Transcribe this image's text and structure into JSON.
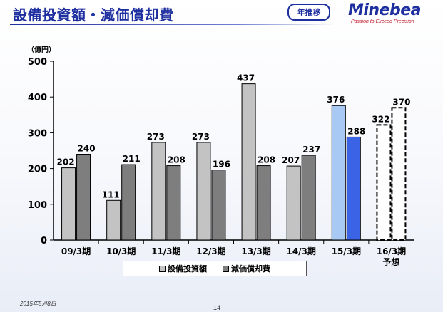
{
  "header": {
    "title": "設備投資額・減価償却費",
    "badge": "年推移"
  },
  "logo": {
    "name": "Minebea",
    "tagline": "Passion to Exceed Precision"
  },
  "footer": {
    "date": "2015年5月8日",
    "page": "14"
  },
  "colors": {
    "title": "#1e2fa0",
    "capex": "#c3c3c3",
    "depreciation": "#7e7e7e",
    "capex_highlight": "#a9c9f5",
    "depreciation_highlight": "#3b63e6"
  },
  "chart_data": {
    "type": "bar",
    "ylabel": "（億円）",
    "ylim": [
      0,
      500
    ],
    "yticks": [
      0,
      100,
      200,
      300,
      400,
      500
    ],
    "grid": false,
    "legend_position": "bottom",
    "categories": [
      "09/3期",
      "10/3期",
      "11/3期",
      "12/3期",
      "13/3期",
      "14/3期",
      "15/3期",
      "16/3期"
    ],
    "category_notes": [
      "",
      "",
      "",
      "",
      "",
      "",
      "",
      "予想"
    ],
    "series": [
      {
        "name": "設備投資額",
        "values": [
          202,
          111,
          273,
          273,
          437,
          207,
          376,
          322
        ]
      },
      {
        "name": "減価償却費",
        "values": [
          240,
          211,
          208,
          196,
          208,
          237,
          288,
          370
        ]
      }
    ]
  }
}
